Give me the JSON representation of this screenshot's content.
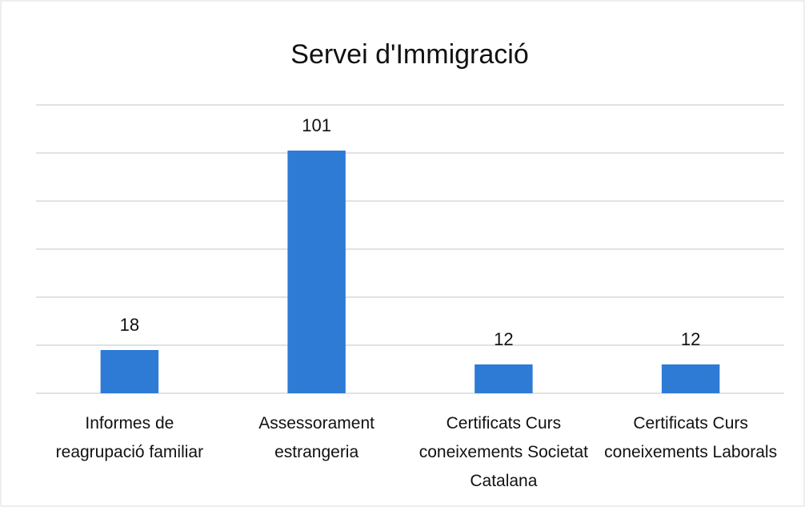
{
  "chart_data": {
    "type": "bar",
    "title": "Servei d'Immigració",
    "categories": [
      "Informes de reagrupació familiar",
      "Assessorament estrangeria",
      "Certificats Curs coneixements Societat Catalana",
      "Certificats Curs coneixements Laborals"
    ],
    "values": [
      18,
      101,
      12,
      12
    ],
    "color": "#2e7bd6",
    "ylim": [
      0,
      120
    ],
    "yticks": [
      0,
      20,
      40,
      60,
      80,
      100,
      120
    ],
    "grid": true
  }
}
